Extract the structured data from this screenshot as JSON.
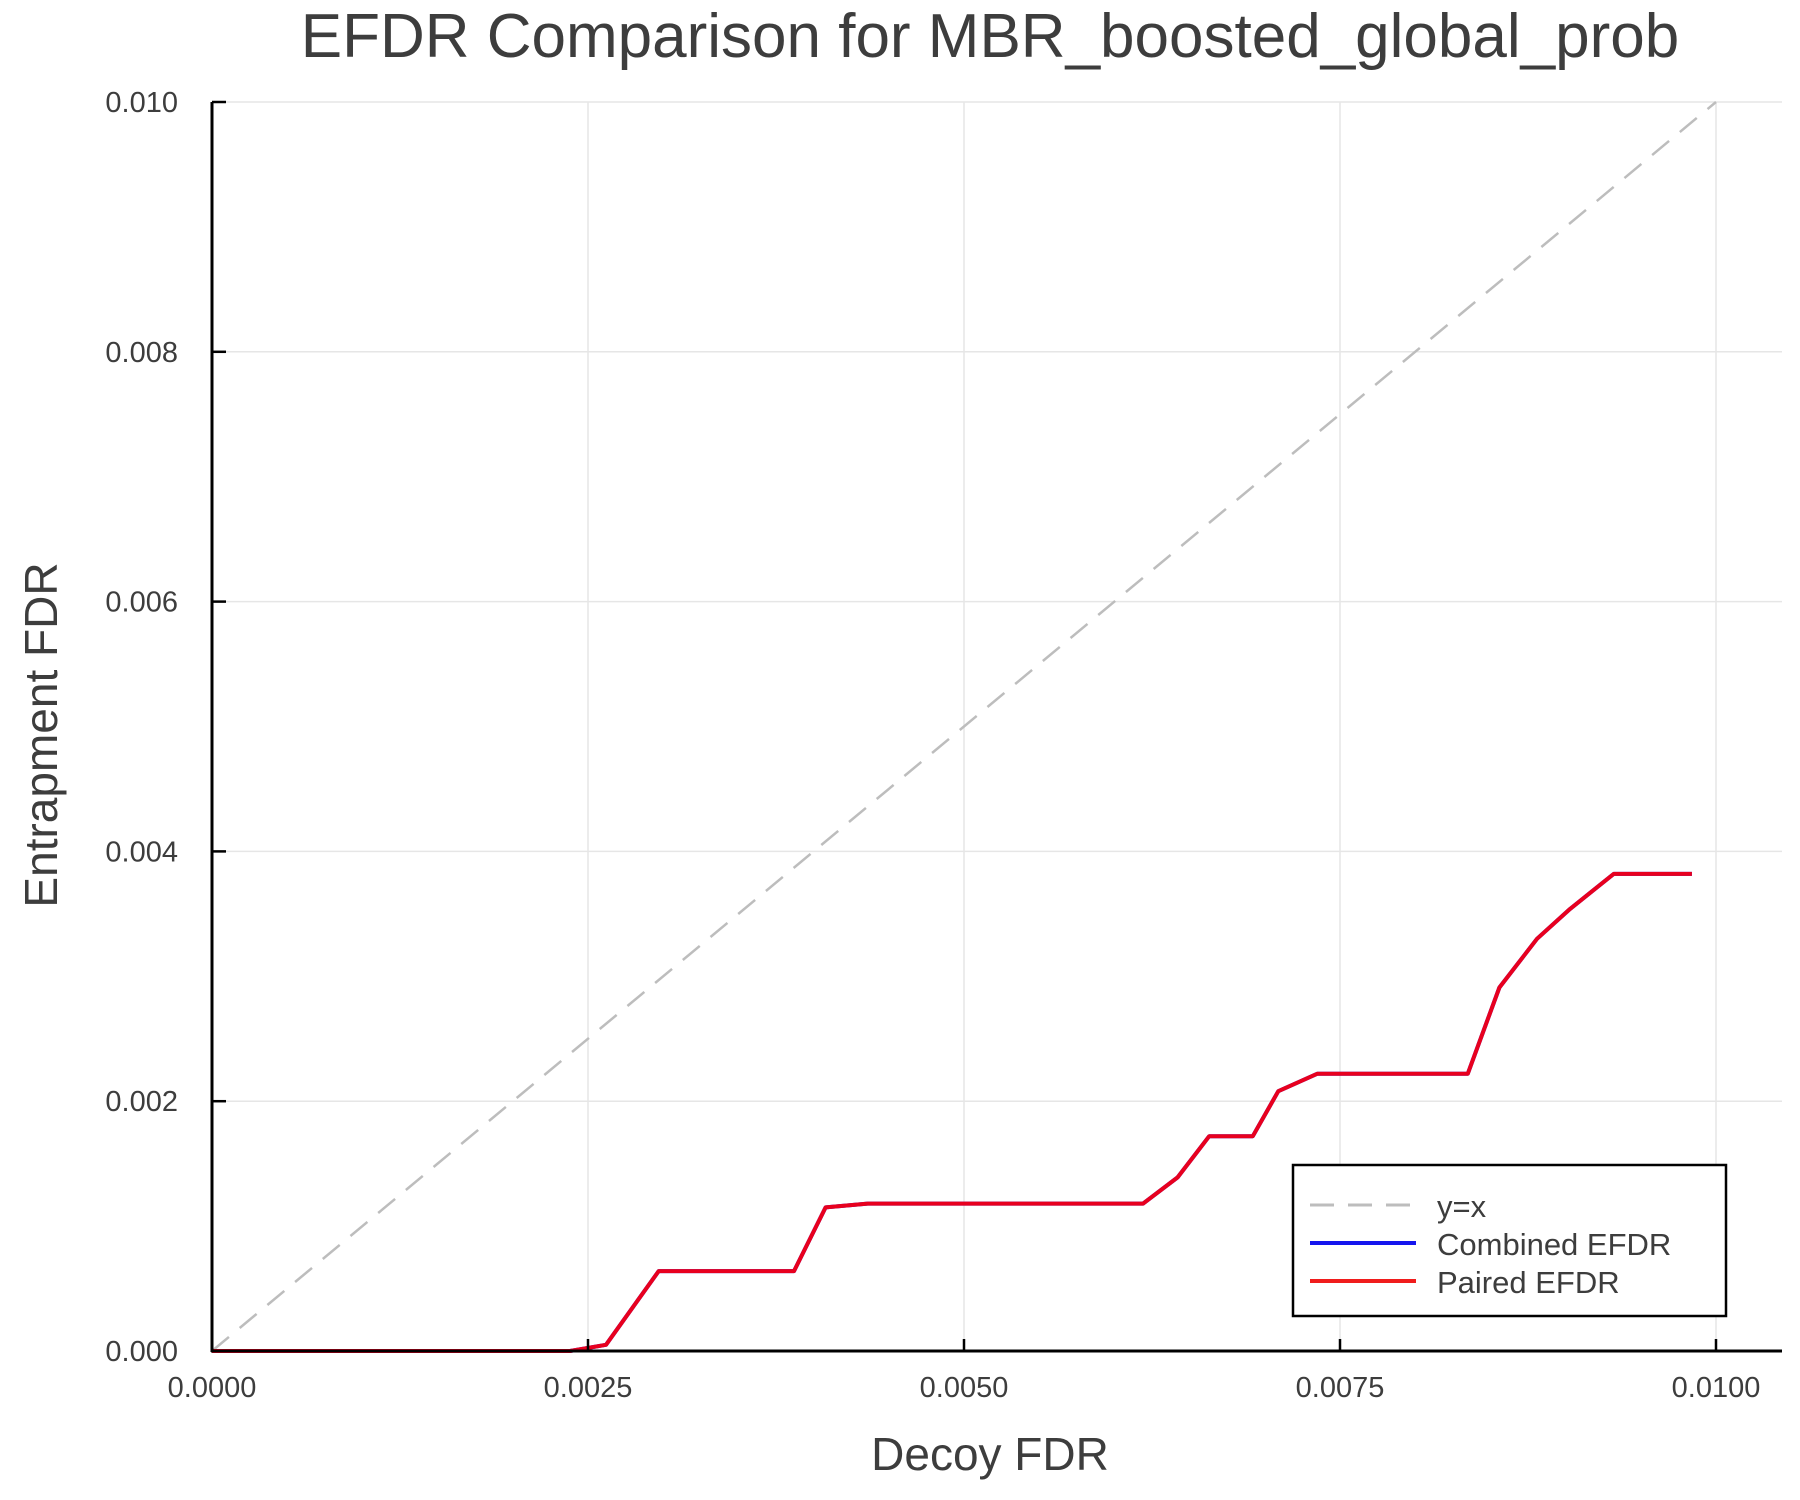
{
  "chart_data": {
    "type": "line",
    "title": "EFDR Comparison for MBR_boosted_global_prob",
    "xlabel": "Decoy FDR",
    "ylabel": "Entrapment FDR",
    "xlim": [
      0,
      0.0103
    ],
    "ylim": [
      0,
      0.01
    ],
    "xticks": [
      0.0,
      0.0025,
      0.005,
      0.0075,
      0.01
    ],
    "xtick_labels": [
      "0.0000",
      "0.0025",
      "0.0050",
      "0.0075",
      "0.0100"
    ],
    "yticks": [
      0.0,
      0.002,
      0.004,
      0.006,
      0.008,
      0.01
    ],
    "ytick_labels": [
      "0.000",
      "0.002",
      "0.004",
      "0.006",
      "0.008",
      "0.010"
    ],
    "grid": true,
    "legend_position": "bottom-right",
    "series": [
      {
        "name": "y=x",
        "color": "#bdbdbd",
        "style": "dashed",
        "x": [
          0.0,
          0.01
        ],
        "y": [
          0.0,
          0.01
        ]
      },
      {
        "name": "Combined EFDR",
        "color": "#1515ee",
        "style": "solid",
        "x": [
          0.0,
          0.00238,
          0.00262,
          0.00297,
          0.00387,
          0.00408,
          0.00436,
          0.00619,
          0.00642,
          0.00663,
          0.00692,
          0.00709,
          0.00735,
          0.00835,
          0.00856,
          0.00881,
          0.00903,
          0.00932,
          0.00984
        ],
        "y": [
          0.0,
          0.0,
          5e-05,
          0.00064,
          0.00064,
          0.00115,
          0.00118,
          0.00118,
          0.00139,
          0.00172,
          0.00172,
          0.00208,
          0.00222,
          0.00222,
          0.00291,
          0.0033,
          0.00354,
          0.00382,
          0.00382
        ]
      },
      {
        "name": "Paired EFDR",
        "color": "#f01c1c",
        "style": "solid",
        "x": [
          0.0,
          0.00238,
          0.00262,
          0.00297,
          0.00387,
          0.00408,
          0.00436,
          0.00619,
          0.00642,
          0.00663,
          0.00692,
          0.00709,
          0.00735,
          0.00835,
          0.00856,
          0.00881,
          0.00903,
          0.00932,
          0.00984
        ],
        "y": [
          0.0,
          0.0,
          5e-05,
          0.00064,
          0.00064,
          0.00115,
          0.00118,
          0.00118,
          0.00139,
          0.00172,
          0.00172,
          0.00208,
          0.00222,
          0.00222,
          0.00291,
          0.0033,
          0.00354,
          0.00382,
          0.00382
        ]
      }
    ]
  },
  "legend": {
    "items": [
      {
        "label": "y=x",
        "color": "#bdbdbd",
        "style": "dashed"
      },
      {
        "label": "Combined EFDR",
        "color": "#1515ee",
        "style": "solid"
      },
      {
        "label": "Paired EFDR",
        "color": "#f01c1c",
        "style": "solid"
      }
    ]
  },
  "colors": {
    "axis": "#000000",
    "grid": "#e6e6e6",
    "text": "#3d3d3d",
    "overlap_line": "#e8001e"
  }
}
